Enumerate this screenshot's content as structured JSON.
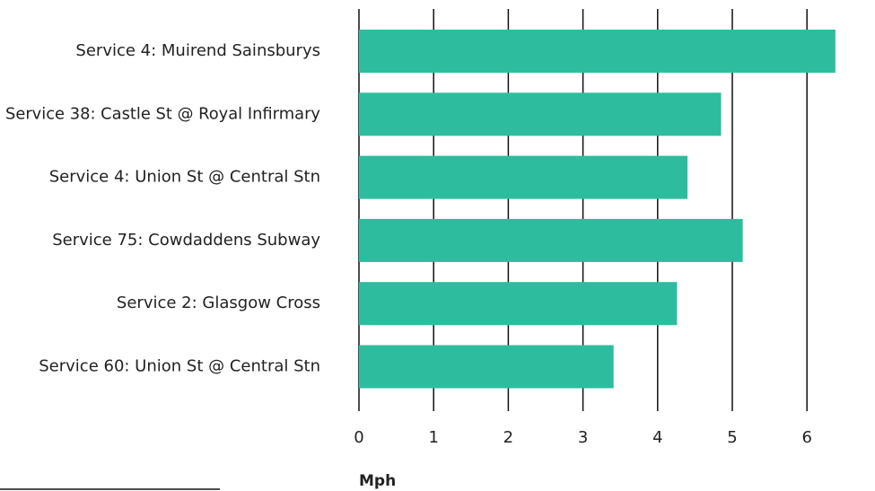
{
  "chart_data": {
    "type": "bar",
    "orientation": "horizontal",
    "categories": [
      "Service 4: Muirend Sainsburys",
      "Service 38: Castle St @ Royal Infirmary",
      "Service 4: Union St @ Central Stn",
      "Service 75: Cowdaddens Subway",
      "Service 2: Glasgow Cross",
      "Service 60: Union St @ Central Stn"
    ],
    "values": [
      6.38,
      4.85,
      4.4,
      5.14,
      4.26,
      3.41
    ],
    "xlabel": "Mph",
    "ylabel": "",
    "title": "",
    "xlim": [
      0,
      6.38
    ],
    "xticks": [
      0,
      1,
      2,
      3,
      4,
      5,
      6
    ],
    "grid": true,
    "bar_color": "#2ebc9f"
  }
}
